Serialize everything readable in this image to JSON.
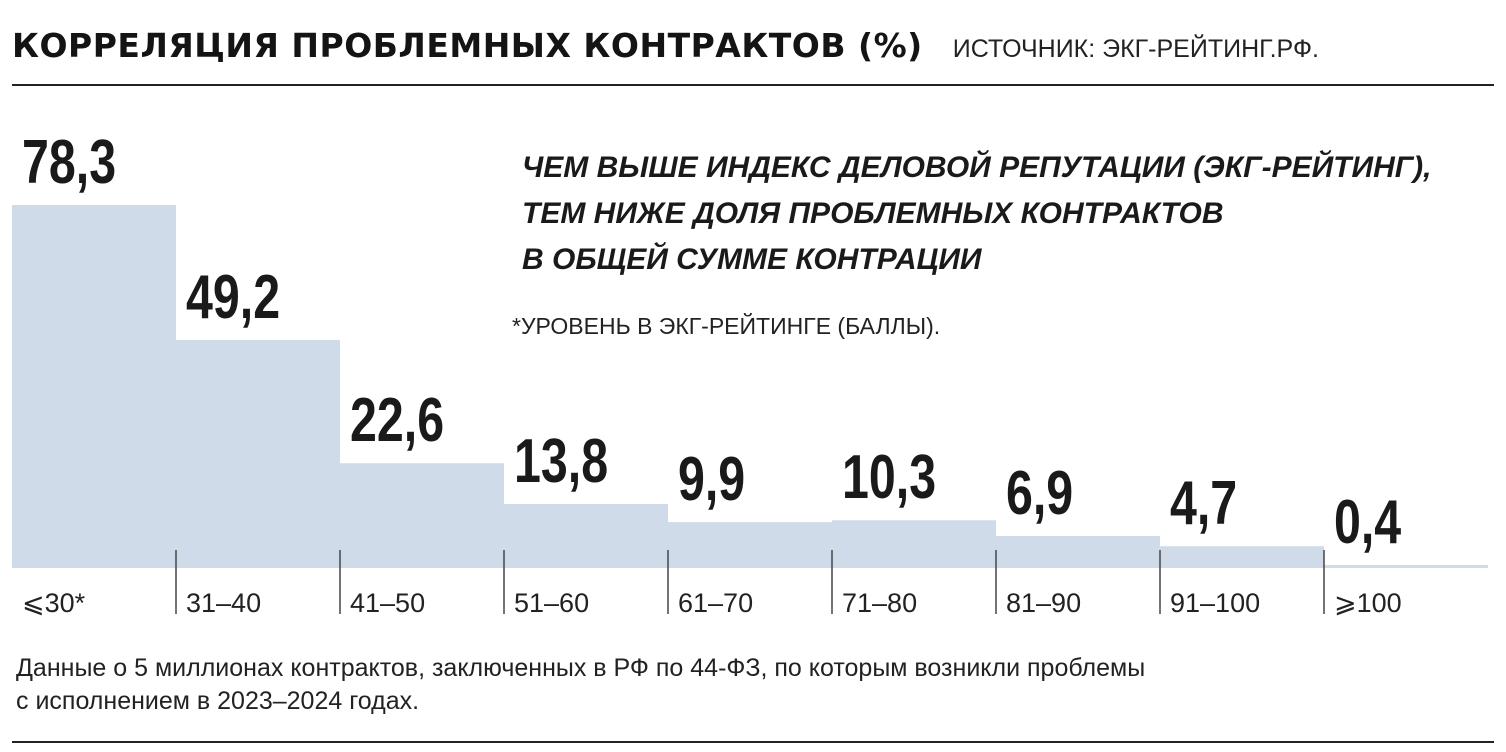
{
  "header": {
    "title": "КОРРЕЛЯЦИЯ ПРОБЛЕМНЫХ КОНТРАКТОВ (%)",
    "source": "ИСТОЧНИК: ЭКГ-РЕЙТИНГ.РФ."
  },
  "annotation": {
    "lines": [
      "ЧЕМ ВЫШЕ ИНДЕКС ДЕЛОВОЙ РЕПУТАЦИИ (ЭКГ-РЕЙТИНГ),",
      "ТЕМ НИЖЕ ДОЛЯ ПРОБЛЕМНЫХ КОНТРАКТОВ",
      "В ОБЩЕЙ СУММЕ КОНТРАЦИИ"
    ],
    "note": "*УРОВЕНЬ В ЭКГ-РЕЙТИНГЕ (БАЛЛЫ)."
  },
  "footnote": {
    "lines": [
      "Данные о 5 миллионах контрактов, заключенных в РФ по 44-ФЗ, по которым возникли проблемы",
      "с исполнением в 2023–2024 годах."
    ]
  },
  "colors": {
    "bar": "#cfdbe9",
    "text": "#1a1a1a",
    "rule": "#222222"
  },
  "chart_data": {
    "type": "bar",
    "title": "КОРРЕЛЯЦИЯ ПРОБЛЕМНЫХ КОНТРАКТОВ (%)",
    "xlabel": "",
    "ylabel": "",
    "categories": [
      "⩽30*",
      "31–40",
      "41–50",
      "51–60",
      "61–70",
      "71–80",
      "81–90",
      "91–100",
      "⩾100"
    ],
    "values": [
      78.3,
      49.2,
      22.6,
      13.8,
      9.9,
      10.3,
      6.9,
      4.7,
      0.4
    ],
    "value_labels": [
      "78,3",
      "49,2",
      "22,6",
      "13,8",
      "9,9",
      "10,3",
      "6,9",
      "4,7",
      "0,4"
    ],
    "ylim": [
      0,
      78.3
    ],
    "grid": false,
    "legend": "none"
  }
}
